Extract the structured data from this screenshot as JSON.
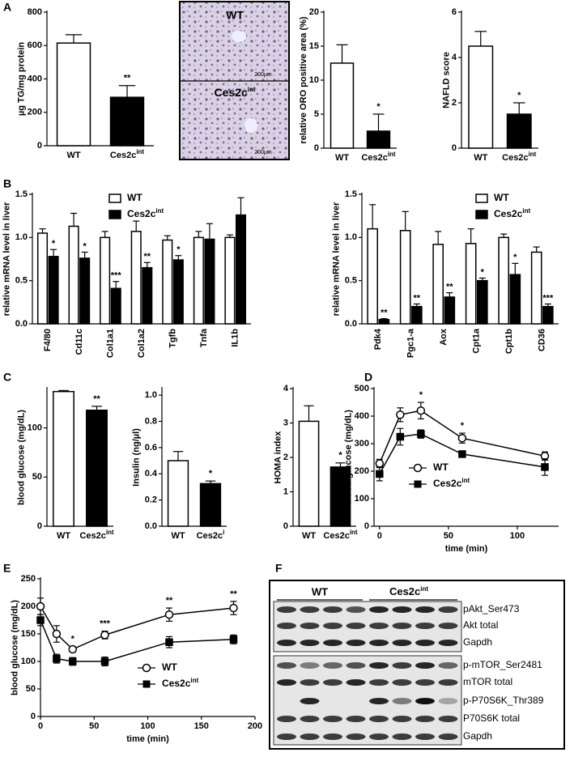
{
  "panel_letters": [
    "A",
    "B",
    "C",
    "D",
    "E",
    "F"
  ],
  "micrograph": {
    "top_label": "WT",
    "bottom_label": "Ces2c",
    "bottom_label_superscript": "int",
    "scale_bar": "200μm"
  },
  "blot": {
    "groups": [
      "WT",
      "Ces2c"
    ],
    "group_superscript": "int",
    "rows": [
      "pAkt_Ser473",
      "Akt total",
      "Gapdh",
      "p-mTOR_Ser2481",
      "mTOR total",
      "p-P70S6K_Thr389",
      "P70S6K total",
      "Gapdh"
    ]
  },
  "chart_data": [
    {
      "type": "bar",
      "ylabel": "µg TG/mg protein",
      "categories": [
        "WT",
        "Ces2c"
      ],
      "category_superscripts": [
        null,
        "int"
      ],
      "values": [
        615,
        290
      ],
      "errors": [
        50,
        70
      ],
      "colors": [
        "#ffffff",
        "#000000"
      ],
      "annotations": [
        null,
        "**"
      ],
      "ylim": [
        0,
        800
      ],
      "yticks": [
        0,
        200,
        400,
        600,
        800
      ]
    },
    {
      "type": "bar",
      "ylabel": "relative ORO positive area (%)",
      "categories": [
        "WT",
        "Ces2c"
      ],
      "category_superscripts": [
        null,
        "int"
      ],
      "values": [
        12.5,
        2.5
      ],
      "errors": [
        2.7,
        2.5
      ],
      "colors": [
        "#ffffff",
        "#000000"
      ],
      "annotations": [
        null,
        "*"
      ],
      "ylim": [
        0,
        20
      ],
      "yticks": [
        0,
        5,
        10,
        15,
        20
      ]
    },
    {
      "type": "bar",
      "ylabel": "NAFLD score",
      "categories": [
        "WT",
        "Ces2c"
      ],
      "category_superscripts": [
        null,
        "int"
      ],
      "values": [
        4.5,
        1.5
      ],
      "errors": [
        0.65,
        0.5
      ],
      "colors": [
        "#ffffff",
        "#000000"
      ],
      "annotations": [
        null,
        "*"
      ],
      "ylim": [
        0,
        6
      ],
      "yticks": [
        0,
        2,
        4,
        6
      ]
    },
    {
      "type": "bar",
      "ylabel": "relative mRNA level in liver",
      "categories": [
        "F4/80",
        "Cd11c",
        "Col1a1",
        "Col1a2",
        "Tgfb",
        "Tnfa",
        "IL1b"
      ],
      "series": [
        {
          "name": "WT",
          "color": "#ffffff",
          "values": [
            1.05,
            1.13,
            1.0,
            1.07,
            0.97,
            1.0,
            1.0
          ],
          "errors": [
            0.05,
            0.15,
            0.07,
            0.12,
            0.05,
            0.07,
            0.03
          ]
        },
        {
          "name": "Ces2c",
          "name_superscript": "int",
          "color": "#000000",
          "values": [
            0.78,
            0.76,
            0.41,
            0.65,
            0.74,
            0.98,
            1.26
          ],
          "errors": [
            0.08,
            0.07,
            0.08,
            0.06,
            0.05,
            0.18,
            0.2
          ]
        }
      ],
      "annotations": [
        "*",
        "*",
        "***",
        "**",
        "*",
        null,
        null
      ],
      "ylim": [
        0,
        1.5
      ],
      "yticks": [
        {
          "value": 0,
          "label": "0.0"
        },
        {
          "value": 0.5,
          "label": "0.5"
        },
        {
          "value": 1,
          "label": "1.0"
        },
        {
          "value": 1.5,
          "label": "1.5"
        }
      ]
    },
    {
      "type": "bar",
      "ylabel": "relative mRNA level in liver",
      "categories": [
        "Pdk4",
        "Pgc1-a",
        "Aox",
        "Cpt1a",
        "Cpt1b",
        "CD36"
      ],
      "series": [
        {
          "name": "WT",
          "color": "#ffffff",
          "values": [
            1.1,
            1.08,
            0.92,
            0.93,
            1.0,
            0.83
          ],
          "errors": [
            0.28,
            0.22,
            0.15,
            0.17,
            0.04,
            0.06
          ]
        },
        {
          "name": "Ces2c",
          "name_superscript": "int",
          "color": "#000000",
          "values": [
            0.05,
            0.2,
            0.31,
            0.5,
            0.57,
            0.2
          ],
          "errors": [
            0.01,
            0.03,
            0.05,
            0.03,
            0.13,
            0.03
          ]
        }
      ],
      "annotations": [
        "**",
        "**",
        "**",
        "*",
        "*",
        "***"
      ],
      "ylim": [
        0,
        1.5
      ],
      "yticks": [
        {
          "value": 0,
          "label": "0.0"
        },
        {
          "value": 0.5,
          "label": "0.5"
        },
        {
          "value": 1,
          "label": "1.0"
        },
        {
          "value": 1.5,
          "label": "1.5"
        }
      ]
    },
    {
      "type": "bar",
      "ylabel": "blood glucose (mg/dL)",
      "categories": [
        "WT",
        "Ces2c"
      ],
      "category_superscripts": [
        null,
        "int"
      ],
      "values": [
        137,
        118
      ],
      "errors": [
        1,
        4
      ],
      "colors": [
        "#ffffff",
        "#000000"
      ],
      "annotations": [
        null,
        "**"
      ],
      "ylim": [
        0,
        140
      ],
      "yticks": [
        0,
        50,
        100
      ]
    },
    {
      "type": "bar",
      "ylabel": "Insulin (ng/µl)",
      "categories": [
        "WT",
        "Ces2c"
      ],
      "category_superscripts": [
        null,
        "i"
      ],
      "values": [
        0.5,
        0.325
      ],
      "errors": [
        0.07,
        0.02
      ],
      "colors": [
        "#ffffff",
        "#000000"
      ],
      "annotations": [
        null,
        "*"
      ],
      "ylim": [
        0,
        1.05
      ],
      "yticks": [
        {
          "value": 0,
          "label": "0.0"
        },
        {
          "value": 0.2,
          "label": "0.2"
        },
        {
          "value": 0.4,
          "label": "0.4"
        },
        {
          "value": 0.6,
          "label": "0.6"
        },
        {
          "value": 0.8,
          "label": "0.8"
        },
        {
          "value": 1,
          "label": "1.0"
        }
      ]
    },
    {
      "type": "bar",
      "ylabel": "HOMA index",
      "categories": [
        "WT",
        "Ces2c"
      ],
      "category_superscripts": [
        null,
        "int"
      ],
      "values": [
        3.05,
        1.72
      ],
      "errors": [
        0.45,
        0.12
      ],
      "colors": [
        "#ffffff",
        "#000000"
      ],
      "annotations": [
        null,
        "*"
      ],
      "ylim": [
        0,
        4
      ],
      "yticks": [
        0,
        1,
        2,
        3,
        4
      ]
    },
    {
      "type": "line",
      "xlabel": "time (min)",
      "ylabel": "blood glucose (mg/dL)",
      "x": [
        0,
        15,
        30,
        60,
        120
      ],
      "series": [
        {
          "name": "WT",
          "color": "#000000",
          "fill": "#ffffff",
          "marker": "circle",
          "values": [
            228,
            405,
            420,
            320,
            255
          ],
          "errors": [
            15,
            25,
            30,
            18,
            15
          ]
        },
        {
          "name": "Ces2c",
          "name_superscript": "int",
          "color": "#000000",
          "fill": "#000000",
          "marker": "square",
          "values": [
            190,
            325,
            335,
            262,
            215
          ],
          "errors": [
            25,
            30,
            15,
            8,
            30
          ]
        }
      ],
      "annotations": [
        null,
        null,
        "*",
        "*",
        null
      ],
      "xlim": [
        -4,
        130
      ],
      "xticks": [
        0,
        50,
        100
      ],
      "ylim": [
        0,
        500
      ],
      "yticks": [
        0,
        100,
        200,
        300,
        400,
        500
      ]
    },
    {
      "type": "line",
      "xlabel": "time (min)",
      "ylabel": "blood glucose (mg/dL)",
      "x": [
        0,
        15,
        30,
        60,
        120,
        180
      ],
      "series": [
        {
          "name": "WT",
          "color": "#000000",
          "fill": "#ffffff",
          "marker": "circle",
          "values": [
            200,
            150,
            122,
            148,
            185,
            197
          ],
          "errors": [
            15,
            15,
            5,
            7,
            12,
            12
          ]
        },
        {
          "name": "Ces2c",
          "name_superscript": "int",
          "color": "#000000",
          "fill": "#000000",
          "marker": "square",
          "values": [
            175,
            105,
            100,
            100,
            135,
            140
          ],
          "errors": [
            10,
            8,
            7,
            8,
            10,
            8
          ]
        }
      ],
      "annotations": [
        null,
        null,
        "*",
        "***",
        "**",
        "**"
      ],
      "xlim": [
        0,
        200
      ],
      "xticks": [
        0,
        50,
        100,
        150,
        200
      ],
      "ylim": [
        0,
        250
      ],
      "yticks": [
        0,
        50,
        100,
        150,
        200,
        250
      ]
    }
  ]
}
